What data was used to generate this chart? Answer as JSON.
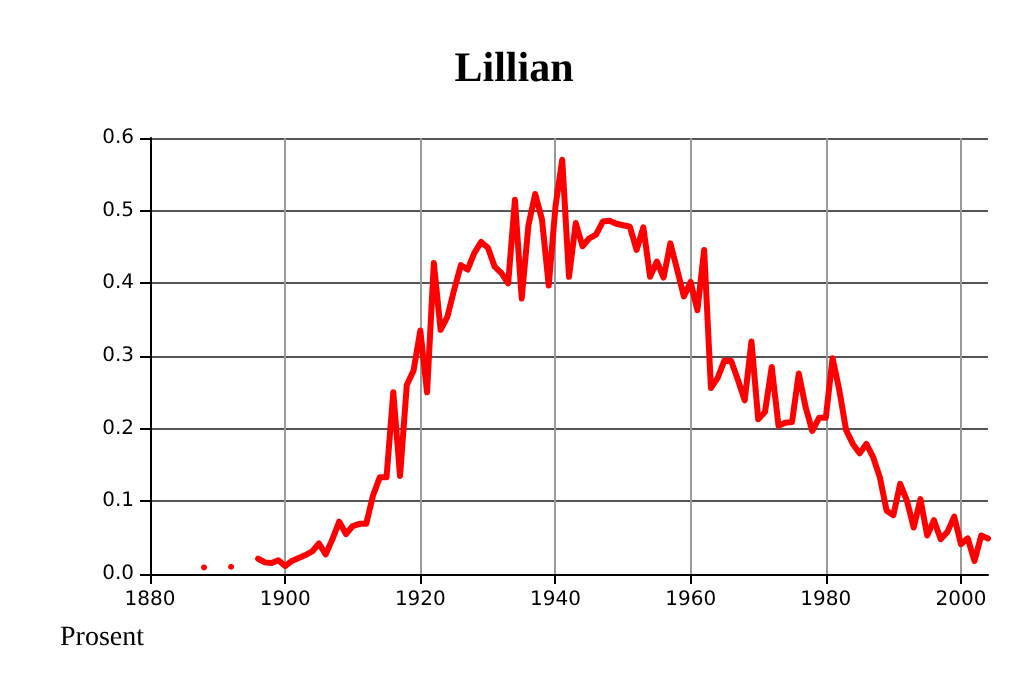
{
  "chart_data": {
    "type": "line",
    "title": "Lillian",
    "ylabel": "Prosent",
    "x": [
      1888,
      1889,
      1890,
      1891,
      1892,
      1893,
      1894,
      1895,
      1896,
      1897,
      1898,
      1899,
      1900,
      1901,
      1902,
      1903,
      1904,
      1905,
      1906,
      1907,
      1908,
      1909,
      1910,
      1911,
      1912,
      1913,
      1914,
      1915,
      1916,
      1917,
      1918,
      1919,
      1920,
      1921,
      1922,
      1923,
      1924,
      1925,
      1926,
      1927,
      1928,
      1929,
      1930,
      1931,
      1932,
      1933,
      1934,
      1935,
      1936,
      1937,
      1938,
      1939,
      1940,
      1941,
      1942,
      1943,
      1944,
      1945,
      1946,
      1947,
      1948,
      1949,
      1950,
      1951,
      1952,
      1953,
      1954,
      1955,
      1956,
      1957,
      1958,
      1959,
      1960,
      1961,
      1962,
      1963,
      1964,
      1965,
      1966,
      1967,
      1968,
      1969,
      1970,
      1971,
      1972,
      1973,
      1974,
      1975,
      1976,
      1977,
      1978,
      1979,
      1980,
      1981,
      1982,
      1983,
      1984,
      1985,
      1986,
      1987,
      1988,
      1989,
      1990,
      1991,
      1992,
      1993,
      1994,
      1995,
      1996,
      1997,
      1998,
      1999,
      2000,
      2001,
      2002,
      2003,
      2004
    ],
    "series": [
      {
        "color": "#ff0000",
        "values": [
          0.009,
          null,
          null,
          null,
          0.01,
          null,
          null,
          null,
          0.021,
          0.016,
          0.015,
          0.019,
          0.011,
          0.018,
          0.022,
          0.026,
          0.031,
          0.042,
          0.027,
          0.048,
          0.072,
          0.055,
          0.066,
          0.069,
          0.069,
          0.108,
          0.133,
          0.133,
          0.25,
          0.135,
          0.26,
          0.28,
          0.335,
          0.25,
          0.428,
          0.336,
          0.354,
          0.391,
          0.425,
          0.419,
          0.442,
          0.457,
          0.449,
          0.423,
          0.414,
          0.4,
          0.515,
          0.379,
          0.48,
          0.523,
          0.488,
          0.397,
          0.506,
          0.57,
          0.409,
          0.483,
          0.451,
          0.462,
          0.467,
          0.485,
          0.486,
          0.482,
          0.48,
          0.478,
          0.446,
          0.477,
          0.409,
          0.43,
          0.408,
          0.455,
          0.419,
          0.382,
          0.402,
          0.363,
          0.446,
          0.256,
          0.27,
          0.294,
          0.293,
          0.267,
          0.239,
          0.32,
          0.213,
          0.223,
          0.285,
          0.204,
          0.208,
          0.209,
          0.276,
          0.23,
          0.197,
          0.215,
          0.215,
          0.297,
          0.253,
          0.198,
          0.179,
          0.166,
          0.179,
          0.161,
          0.133,
          0.087,
          0.081,
          0.124,
          0.101,
          0.064,
          0.103,
          0.053,
          0.074,
          0.048,
          0.058,
          0.079,
          0.041,
          0.049,
          0.018,
          0.053,
          0.049
        ]
      }
    ],
    "xlim": [
      1880,
      2004
    ],
    "xticks": [
      1880,
      1900,
      1920,
      1940,
      1960,
      1980,
      2000
    ],
    "ylim": [
      0,
      0.6
    ],
    "yticks": [
      {
        "value": 0,
        "label": "0.0"
      },
      0.1,
      0.2,
      0.3,
      0.4,
      0.5,
      0.6
    ],
    "grid": true,
    "line_style": "solid"
  }
}
